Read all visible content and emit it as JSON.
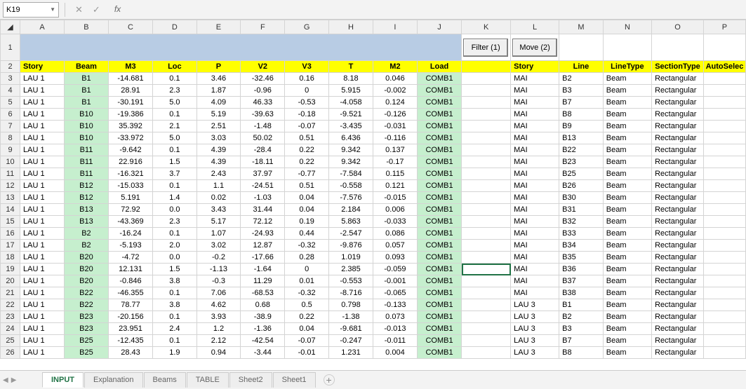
{
  "nameBox": "K19",
  "formulaBar": {
    "fx": "fx",
    "cancel": "✕",
    "confirm": "✓"
  },
  "columns": [
    "A",
    "B",
    "C",
    "D",
    "E",
    "F",
    "G",
    "H",
    "I",
    "J",
    "K",
    "L",
    "M",
    "N",
    "O",
    "P"
  ],
  "row1": {
    "filter": "Filter (1)",
    "move": "Move (2)"
  },
  "headers": [
    "Story",
    "Beam",
    "M3",
    "Loc",
    "P",
    "V2",
    "V3",
    "T",
    "M2",
    "Load",
    "",
    "Story",
    "Line",
    "LineType",
    "SectionType",
    "AutoSelec"
  ],
  "rows": [
    {
      "n": 3,
      "a": "LAU 1",
      "b": "B1",
      "c": "-14.681",
      "d": "0.1",
      "e": "3.46",
      "f": "-32.46",
      "g": "0.16",
      "h": "8.18",
      "i": "0.046",
      "j": "COMB1",
      "l": "MAI",
      "m": "B2",
      "nCol": "Beam",
      "o": "Rectangular"
    },
    {
      "n": 4,
      "a": "LAU 1",
      "b": "B1",
      "c": "28.91",
      "d": "2.3",
      "e": "1.87",
      "f": "-0.96",
      "g": "0",
      "h": "5.915",
      "i": "-0.002",
      "j": "COMB1",
      "l": "MAI",
      "m": "B3",
      "nCol": "Beam",
      "o": "Rectangular"
    },
    {
      "n": 5,
      "a": "LAU 1",
      "b": "B1",
      "c": "-30.191",
      "d": "5.0",
      "e": "4.09",
      "f": "46.33",
      "g": "-0.53",
      "h": "-4.058",
      "i": "0.124",
      "j": "COMB1",
      "l": "MAI",
      "m": "B7",
      "nCol": "Beam",
      "o": "Rectangular"
    },
    {
      "n": 6,
      "a": "LAU 1",
      "b": "B10",
      "c": "-19.386",
      "d": "0.1",
      "e": "5.19",
      "f": "-39.63",
      "g": "-0.18",
      "h": "-9.521",
      "i": "-0.126",
      "j": "COMB1",
      "l": "MAI",
      "m": "B8",
      "nCol": "Beam",
      "o": "Rectangular"
    },
    {
      "n": 7,
      "a": "LAU 1",
      "b": "B10",
      "c": "35.392",
      "d": "2.1",
      "e": "2.51",
      "f": "-1.48",
      "g": "-0.07",
      "h": "-3.435",
      "i": "-0.031",
      "j": "COMB1",
      "l": "MAI",
      "m": "B9",
      "nCol": "Beam",
      "o": "Rectangular"
    },
    {
      "n": 8,
      "a": "LAU 1",
      "b": "B10",
      "c": "-33.972",
      "d": "5.0",
      "e": "3.03",
      "f": "50.02",
      "g": "0.51",
      "h": "6.436",
      "i": "-0.116",
      "j": "COMB1",
      "l": "MAI",
      "m": "B13",
      "nCol": "Beam",
      "o": "Rectangular"
    },
    {
      "n": 9,
      "a": "LAU 1",
      "b": "B11",
      "c": "-9.642",
      "d": "0.1",
      "e": "4.39",
      "f": "-28.4",
      "g": "0.22",
      "h": "9.342",
      "i": "0.137",
      "j": "COMB1",
      "l": "MAI",
      "m": "B22",
      "nCol": "Beam",
      "o": "Rectangular"
    },
    {
      "n": 10,
      "a": "LAU 1",
      "b": "B11",
      "c": "22.916",
      "d": "1.5",
      "e": "4.39",
      "f": "-18.11",
      "g": "0.22",
      "h": "9.342",
      "i": "-0.17",
      "j": "COMB1",
      "l": "MAI",
      "m": "B23",
      "nCol": "Beam",
      "o": "Rectangular"
    },
    {
      "n": 11,
      "a": "LAU 1",
      "b": "B11",
      "c": "-16.321",
      "d": "3.7",
      "e": "2.43",
      "f": "37.97",
      "g": "-0.77",
      "h": "-7.584",
      "i": "0.115",
      "j": "COMB1",
      "l": "MAI",
      "m": "B25",
      "nCol": "Beam",
      "o": "Rectangular"
    },
    {
      "n": 12,
      "a": "LAU 1",
      "b": "B12",
      "c": "-15.033",
      "d": "0.1",
      "e": "1.1",
      "f": "-24.51",
      "g": "0.51",
      "h": "-0.558",
      "i": "0.121",
      "j": "COMB1",
      "l": "MAI",
      "m": "B26",
      "nCol": "Beam",
      "o": "Rectangular"
    },
    {
      "n": 13,
      "a": "LAU 1",
      "b": "B12",
      "c": "5.191",
      "d": "1.4",
      "e": "0.02",
      "f": "-1.03",
      "g": "0.04",
      "h": "-7.576",
      "i": "-0.015",
      "j": "COMB1",
      "l": "MAI",
      "m": "B30",
      "nCol": "Beam",
      "o": "Rectangular"
    },
    {
      "n": 14,
      "a": "LAU 1",
      "b": "B13",
      "c": "72.92",
      "d": "0.0",
      "e": "3.43",
      "f": "31.44",
      "g": "0.04",
      "h": "2.184",
      "i": "0.006",
      "j": "COMB1",
      "l": "MAI",
      "m": "B31",
      "nCol": "Beam",
      "o": "Rectangular"
    },
    {
      "n": 15,
      "a": "LAU 1",
      "b": "B13",
      "c": "-43.369",
      "d": "2.3",
      "e": "5.17",
      "f": "72.12",
      "g": "0.19",
      "h": "5.863",
      "i": "-0.033",
      "j": "COMB1",
      "l": "MAI",
      "m": "B32",
      "nCol": "Beam",
      "o": "Rectangular"
    },
    {
      "n": 16,
      "a": "LAU 1",
      "b": "B2",
      "c": "-16.24",
      "d": "0.1",
      "e": "1.07",
      "f": "-24.93",
      "g": "0.44",
      "h": "-2.547",
      "i": "0.086",
      "j": "COMB1",
      "l": "MAI",
      "m": "B33",
      "nCol": "Beam",
      "o": "Rectangular"
    },
    {
      "n": 17,
      "a": "LAU 1",
      "b": "B2",
      "c": "-5.193",
      "d": "2.0",
      "e": "3.02",
      "f": "12.87",
      "g": "-0.32",
      "h": "-9.876",
      "i": "0.057",
      "j": "COMB1",
      "l": "MAI",
      "m": "B34",
      "nCol": "Beam",
      "o": "Rectangular"
    },
    {
      "n": 18,
      "a": "LAU 1",
      "b": "B20",
      "c": "-4.72",
      "d": "0.0",
      "e": "-0.2",
      "f": "-17.66",
      "g": "0.28",
      "h": "1.019",
      "i": "0.093",
      "j": "COMB1",
      "l": "MAI",
      "m": "B35",
      "nCol": "Beam",
      "o": "Rectangular"
    },
    {
      "n": 19,
      "a": "LAU 1",
      "b": "B20",
      "c": "12.131",
      "d": "1.5",
      "e": "-1.13",
      "f": "-1.64",
      "g": "0",
      "h": "2.385",
      "i": "-0.059",
      "j": "COMB1",
      "l": "MAI",
      "m": "B36",
      "nCol": "Beam",
      "o": "Rectangular",
      "active": true
    },
    {
      "n": 20,
      "a": "LAU 1",
      "b": "B20",
      "c": "-0.846",
      "d": "3.8",
      "e": "-0.3",
      "f": "11.29",
      "g": "0.01",
      "h": "-0.553",
      "i": "-0.001",
      "j": "COMB1",
      "l": "MAI",
      "m": "B37",
      "nCol": "Beam",
      "o": "Rectangular"
    },
    {
      "n": 21,
      "a": "LAU 1",
      "b": "B22",
      "c": "-46.355",
      "d": "0.1",
      "e": "7.06",
      "f": "-68.53",
      "g": "-0.32",
      "h": "-8.716",
      "i": "-0.065",
      "j": "COMB1",
      "l": "MAI",
      "m": "B38",
      "nCol": "Beam",
      "o": "Rectangular"
    },
    {
      "n": 22,
      "a": "LAU 1",
      "b": "B22",
      "c": "78.77",
      "d": "3.8",
      "e": "4.62",
      "f": "0.68",
      "g": "0.5",
      "h": "0.798",
      "i": "-0.133",
      "j": "COMB1",
      "l": "LAU 3",
      "m": "B1",
      "nCol": "Beam",
      "o": "Rectangular"
    },
    {
      "n": 23,
      "a": "LAU 1",
      "b": "B23",
      "c": "-20.156",
      "d": "0.1",
      "e": "3.93",
      "f": "-38.9",
      "g": "0.22",
      "h": "-1.38",
      "i": "0.073",
      "j": "COMB1",
      "l": "LAU 3",
      "m": "B2",
      "nCol": "Beam",
      "o": "Rectangular"
    },
    {
      "n": 24,
      "a": "LAU 1",
      "b": "B23",
      "c": "23.951",
      "d": "2.4",
      "e": "1.2",
      "f": "-1.36",
      "g": "0.04",
      "h": "-9.681",
      "i": "-0.013",
      "j": "COMB1",
      "l": "LAU 3",
      "m": "B3",
      "nCol": "Beam",
      "o": "Rectangular"
    },
    {
      "n": 25,
      "a": "LAU 1",
      "b": "B25",
      "c": "-12.435",
      "d": "0.1",
      "e": "2.12",
      "f": "-42.54",
      "g": "-0.07",
      "h": "-0.247",
      "i": "-0.011",
      "j": "COMB1",
      "l": "LAU 3",
      "m": "B7",
      "nCol": "Beam",
      "o": "Rectangular"
    },
    {
      "n": 26,
      "a": "LAU 1",
      "b": "B25",
      "c": "28.43",
      "d": "1.9",
      "e": "0.94",
      "f": "-3.44",
      "g": "-0.01",
      "h": "1.231",
      "i": "0.004",
      "j": "COMB1",
      "l": "LAU 3",
      "m": "B8",
      "nCol": "Beam",
      "o": "Rectangular"
    }
  ],
  "tabs": [
    "INPUT",
    "Explanation",
    "Beams",
    "TABLE",
    "Sheet2",
    "Sheet1"
  ],
  "activeTab": "INPUT",
  "tabArrows": [
    "◀",
    "▶"
  ]
}
